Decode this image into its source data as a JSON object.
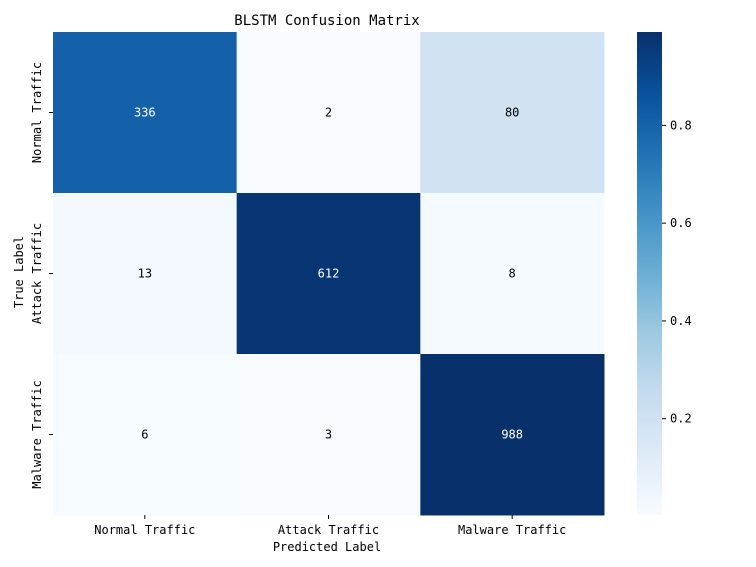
{
  "chart_data": {
    "type": "heatmap",
    "title": "BLSTM Confusion Matrix",
    "xlabel": "Predicted Label",
    "ylabel": "True Label",
    "x_categories": [
      "Normal Traffic",
      "Attack Traffic",
      "Malware Traffic"
    ],
    "y_categories": [
      "Normal Traffic",
      "Attack Traffic",
      "Malware Traffic"
    ],
    "values": [
      [
        336,
        2,
        80
      ],
      [
        13,
        612,
        8
      ],
      [
        6,
        3,
        988
      ]
    ],
    "color_values": [
      [
        0.804,
        0.005,
        0.191
      ],
      [
        0.021,
        0.967,
        0.013
      ],
      [
        0.006,
        0.003,
        0.991
      ]
    ],
    "colormap": "Blues",
    "colorbar": {
      "range": [
        0.003,
        0.991
      ],
      "ticks": [
        0.2,
        0.4,
        0.6,
        0.8
      ],
      "tick_labels": [
        "0.2",
        "0.4",
        "0.6",
        "0.8"
      ]
    },
    "grid": false,
    "legend": "colorbar-right"
  }
}
